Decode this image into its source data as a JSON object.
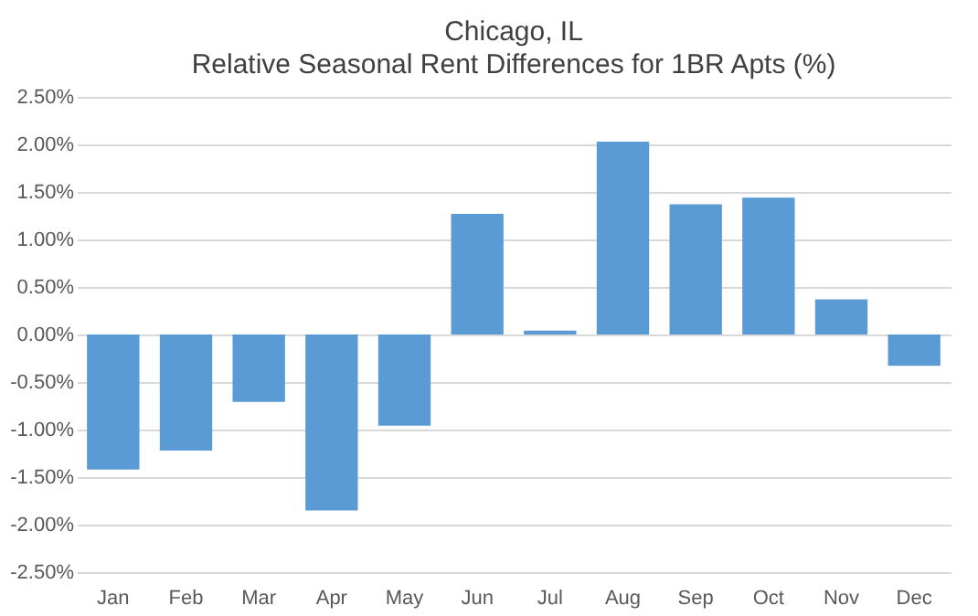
{
  "chart_data": {
    "type": "bar",
    "title": "Chicago, IL",
    "subtitle": "Relative Seasonal Rent Differences for 1BR Apts (%)",
    "categories": [
      "Jan",
      "Feb",
      "Mar",
      "Apr",
      "May",
      "Jun",
      "Jul",
      "Aug",
      "Sep",
      "Oct",
      "Nov",
      "Dec"
    ],
    "values": [
      -1.42,
      -1.22,
      -0.71,
      -1.85,
      -0.96,
      1.27,
      0.04,
      2.03,
      1.37,
      1.44,
      0.37,
      -0.33
    ],
    "color": "#5b9bd5",
    "ylim": [
      -2.5,
      2.5
    ],
    "yticks": [
      {
        "value": -2.5,
        "label": "-2.50%"
      },
      {
        "value": -2.0,
        "label": "-2.00%"
      },
      {
        "value": -1.5,
        "label": "-1.50%"
      },
      {
        "value": -1.0,
        "label": "-1.00%"
      },
      {
        "value": -0.5,
        "label": "-0.50%"
      },
      {
        "value": 0,
        "label": "0.00%"
      },
      {
        "value": 0.5,
        "label": "0.50%"
      },
      {
        "value": 1.0,
        "label": "1.00%"
      },
      {
        "value": 1.5,
        "label": "1.50%"
      },
      {
        "value": 2.0,
        "label": "2.00%"
      },
      {
        "value": 2.5,
        "label": "2.50%"
      }
    ],
    "grid": "y"
  }
}
